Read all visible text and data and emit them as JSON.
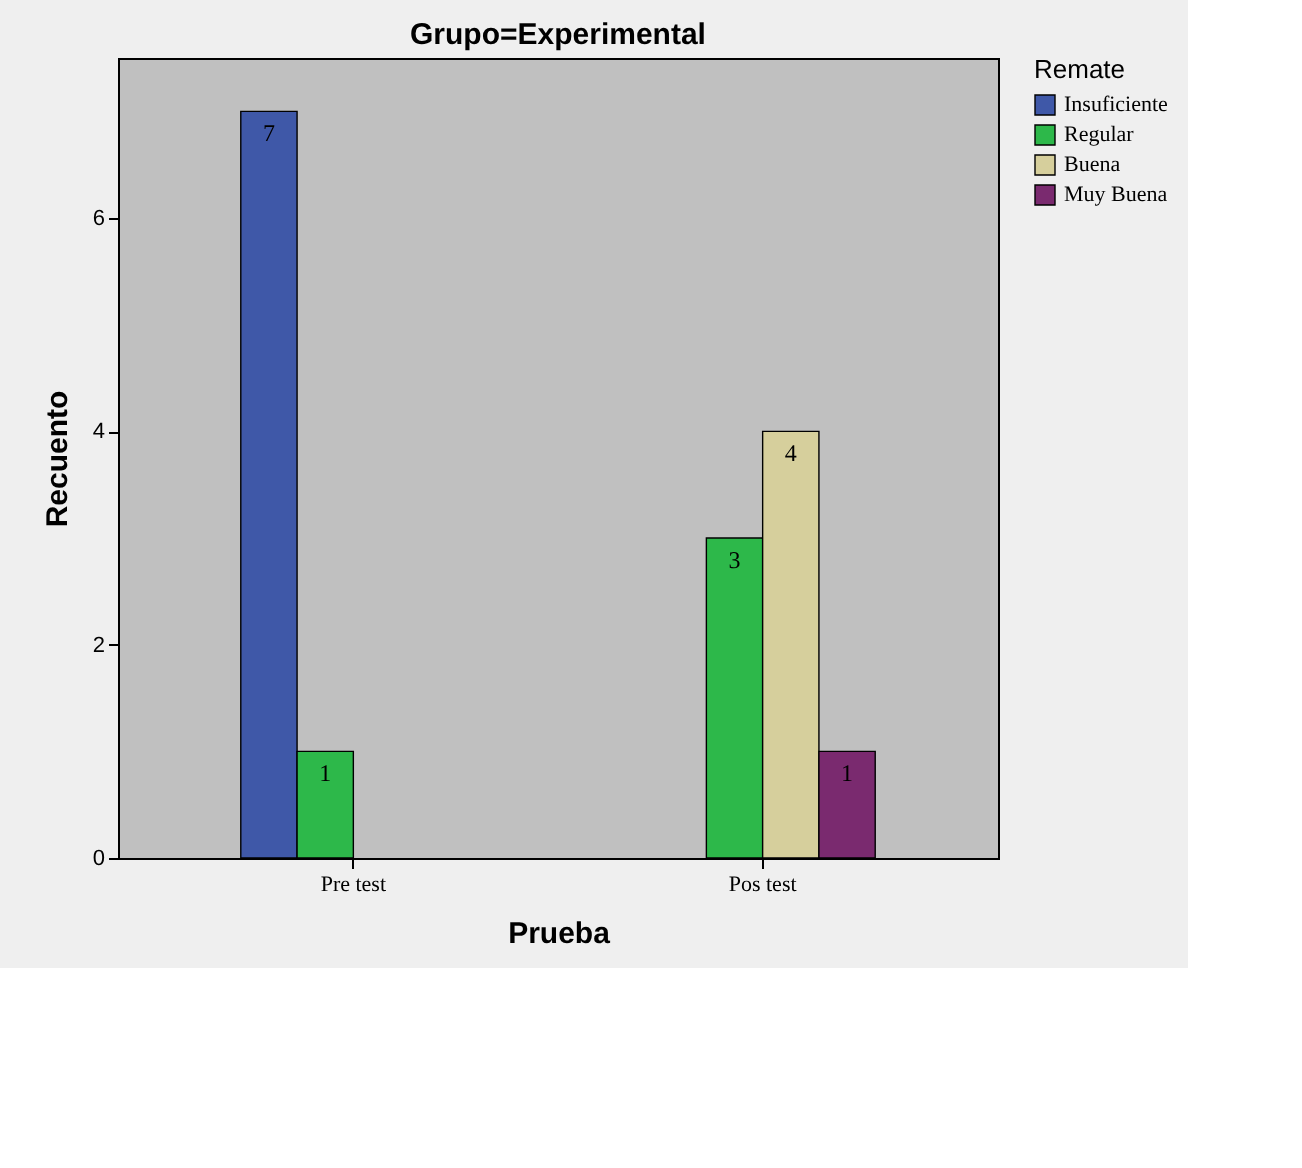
{
  "chart_data": {
    "type": "bar",
    "title": "Grupo=Experimental",
    "xlabel": "Prueba",
    "ylabel": "Recuento",
    "legend_title": "Remate",
    "categories": [
      "Pre test",
      "Pos test"
    ],
    "series": [
      {
        "name": "Insuficiente",
        "color": "#3f58a8",
        "values": [
          7,
          null
        ]
      },
      {
        "name": "Regular",
        "color": "#2db84a",
        "values": [
          1,
          3
        ]
      },
      {
        "name": "Buena",
        "color": "#d6cf9c",
        "values": [
          null,
          4
        ]
      },
      {
        "name": "Muy Buena",
        "color": "#7a2a6f",
        "values": [
          null,
          1
        ]
      }
    ],
    "ylim": [
      0,
      7.5
    ],
    "yticks": [
      0,
      2,
      4,
      6
    ],
    "data_labels": true,
    "legend": "top right"
  }
}
